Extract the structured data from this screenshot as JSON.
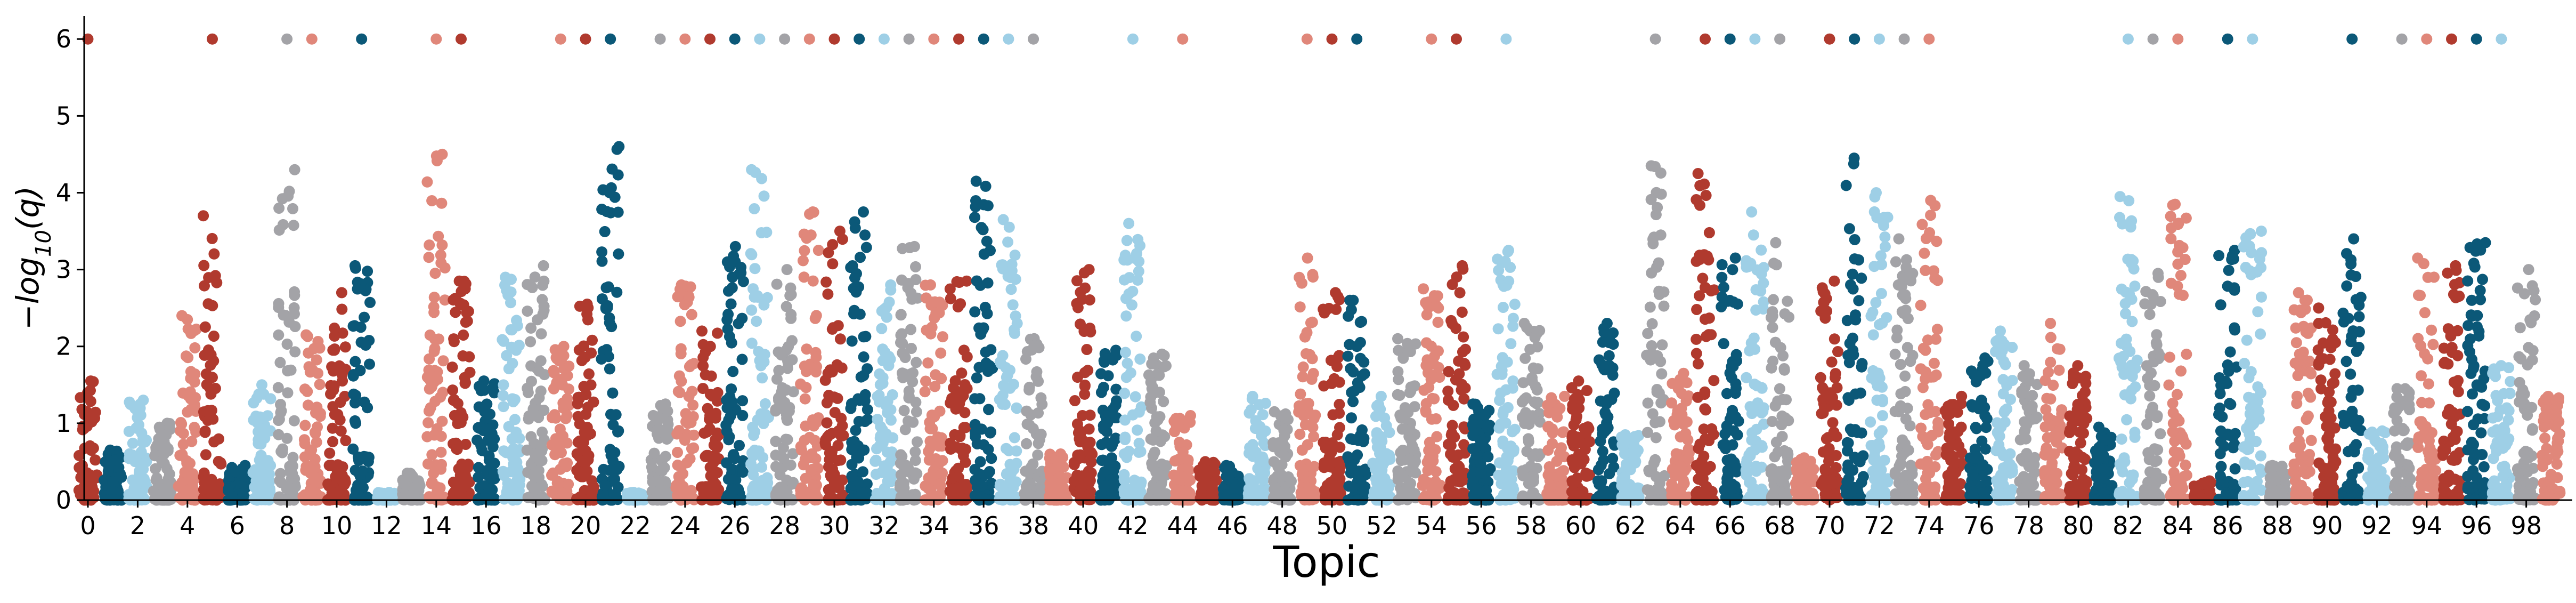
{
  "chart_data": {
    "type": "scatter",
    "title": "",
    "xlabel": "Topic",
    "ylabel": "−log10(q)",
    "ylabel_main": "−log",
    "ylabel_sub": "10",
    "ylabel_tail": "(q)",
    "xlim": [
      -0.15,
      99.85
    ],
    "ylim": [
      0,
      6.3
    ],
    "yticks": [
      0,
      1,
      2,
      3,
      4,
      5,
      6
    ],
    "xticks": [
      0,
      2,
      4,
      6,
      8,
      10,
      12,
      14,
      16,
      18,
      20,
      22,
      24,
      26,
      28,
      30,
      32,
      34,
      36,
      38,
      40,
      42,
      44,
      46,
      48,
      50,
      52,
      54,
      56,
      58,
      60,
      62,
      64,
      66,
      68,
      70,
      72,
      74,
      76,
      78,
      80,
      82,
      84,
      86,
      88,
      90,
      92,
      94,
      96,
      98
    ],
    "grid": false,
    "legend": "none",
    "color_cycle": [
      "#b03a2e",
      "#0b5878",
      "#9ecfe6",
      "#a3a3a7",
      "#e0877a"
    ],
    "marker_size_note": "values capped at 6",
    "topics": [
      {
        "topic": 0,
        "max": 1.55,
        "capped": true
      },
      {
        "topic": 1,
        "max": 0.65,
        "capped": false
      },
      {
        "topic": 2,
        "max": 1.3,
        "capped": false
      },
      {
        "topic": 3,
        "max": 1.0,
        "capped": false
      },
      {
        "topic": 4,
        "max": 2.4,
        "capped": false
      },
      {
        "topic": 5,
        "max": 3.7,
        "capped": true
      },
      {
        "topic": 6,
        "max": 0.45,
        "capped": false
      },
      {
        "topic": 7,
        "max": 1.5,
        "capped": false
      },
      {
        "topic": 8,
        "max": 4.3,
        "capped": true
      },
      {
        "topic": 9,
        "max": 2.15,
        "capped": true
      },
      {
        "topic": 10,
        "max": 2.7,
        "capped": false
      },
      {
        "topic": 11,
        "max": 3.05,
        "capped": true
      },
      {
        "topic": 12,
        "max": 0.1,
        "capped": false
      },
      {
        "topic": 13,
        "max": 0.35,
        "capped": false
      },
      {
        "topic": 14,
        "max": 4.5,
        "capped": true
      },
      {
        "topic": 15,
        "max": 2.85,
        "capped": true
      },
      {
        "topic": 16,
        "max": 1.55,
        "capped": false
      },
      {
        "topic": 17,
        "max": 2.9,
        "capped": false
      },
      {
        "topic": 18,
        "max": 3.05,
        "capped": false
      },
      {
        "topic": 19,
        "max": 2.0,
        "capped": true
      },
      {
        "topic": 20,
        "max": 2.55,
        "capped": true
      },
      {
        "topic": 21,
        "max": 4.6,
        "capped": true
      },
      {
        "topic": 22,
        "max": 0.1,
        "capped": false
      },
      {
        "topic": 23,
        "max": 1.25,
        "capped": true
      },
      {
        "topic": 24,
        "max": 2.8,
        "capped": true
      },
      {
        "topic": 25,
        "max": 2.2,
        "capped": true
      },
      {
        "topic": 26,
        "max": 3.3,
        "capped": true
      },
      {
        "topic": 27,
        "max": 4.3,
        "capped": true
      },
      {
        "topic": 28,
        "max": 3.0,
        "capped": true
      },
      {
        "topic": 29,
        "max": 3.75,
        "capped": true
      },
      {
        "topic": 30,
        "max": 3.5,
        "capped": true
      },
      {
        "topic": 31,
        "max": 3.75,
        "capped": true
      },
      {
        "topic": 32,
        "max": 2.8,
        "capped": true
      },
      {
        "topic": 33,
        "max": 3.3,
        "capped": true
      },
      {
        "topic": 34,
        "max": 2.8,
        "capped": true
      },
      {
        "topic": 35,
        "max": 2.85,
        "capped": true
      },
      {
        "topic": 36,
        "max": 4.15,
        "capped": true
      },
      {
        "topic": 37,
        "max": 3.65,
        "capped": true
      },
      {
        "topic": 38,
        "max": 2.1,
        "capped": true
      },
      {
        "topic": 39,
        "max": 0.6,
        "capped": false
      },
      {
        "topic": 40,
        "max": 3.0,
        "capped": false
      },
      {
        "topic": 41,
        "max": 1.95,
        "capped": false
      },
      {
        "topic": 42,
        "max": 3.6,
        "capped": true
      },
      {
        "topic": 43,
        "max": 1.9,
        "capped": false
      },
      {
        "topic": 44,
        "max": 1.1,
        "capped": true
      },
      {
        "topic": 45,
        "max": 0.5,
        "capped": false
      },
      {
        "topic": 46,
        "max": 0.45,
        "capped": false
      },
      {
        "topic": 47,
        "max": 1.35,
        "capped": false
      },
      {
        "topic": 48,
        "max": 1.15,
        "capped": false
      },
      {
        "topic": 49,
        "max": 3.15,
        "capped": true
      },
      {
        "topic": 50,
        "max": 2.7,
        "capped": true
      },
      {
        "topic": 51,
        "max": 2.6,
        "capped": true
      },
      {
        "topic": 52,
        "max": 1.35,
        "capped": false
      },
      {
        "topic": 53,
        "max": 2.1,
        "capped": false
      },
      {
        "topic": 54,
        "max": 2.75,
        "capped": true
      },
      {
        "topic": 55,
        "max": 3.05,
        "capped": true
      },
      {
        "topic": 56,
        "max": 1.25,
        "capped": false
      },
      {
        "topic": 57,
        "max": 3.25,
        "capped": true
      },
      {
        "topic": 58,
        "max": 2.3,
        "capped": false
      },
      {
        "topic": 59,
        "max": 1.35,
        "capped": false
      },
      {
        "topic": 60,
        "max": 1.55,
        "capped": false
      },
      {
        "topic": 61,
        "max": 2.3,
        "capped": false
      },
      {
        "topic": 62,
        "max": 0.85,
        "capped": false
      },
      {
        "topic": 63,
        "max": 4.35,
        "capped": true
      },
      {
        "topic": 64,
        "max": 1.65,
        "capped": false
      },
      {
        "topic": 65,
        "max": 4.25,
        "capped": true
      },
      {
        "topic": 66,
        "max": 3.15,
        "capped": true
      },
      {
        "topic": 67,
        "max": 3.75,
        "capped": true
      },
      {
        "topic": 68,
        "max": 3.35,
        "capped": true
      },
      {
        "topic": 69,
        "max": 0.55,
        "capped": false
      },
      {
        "topic": 70,
        "max": 2.85,
        "capped": true
      },
      {
        "topic": 71,
        "max": 4.45,
        "capped": true
      },
      {
        "topic": 72,
        "max": 4.0,
        "capped": true
      },
      {
        "topic": 73,
        "max": 3.4,
        "capped": true
      },
      {
        "topic": 74,
        "max": 3.9,
        "capped": true
      },
      {
        "topic": 75,
        "max": 1.35,
        "capped": false
      },
      {
        "topic": 76,
        "max": 1.85,
        "capped": false
      },
      {
        "topic": 77,
        "max": 2.2,
        "capped": false
      },
      {
        "topic": 78,
        "max": 1.75,
        "capped": false
      },
      {
        "topic": 79,
        "max": 2.3,
        "capped": false
      },
      {
        "topic": 80,
        "max": 1.75,
        "capped": false
      },
      {
        "topic": 81,
        "max": 0.95,
        "capped": false
      },
      {
        "topic": 82,
        "max": 3.95,
        "capped": true
      },
      {
        "topic": 83,
        "max": 2.95,
        "capped": true
      },
      {
        "topic": 84,
        "max": 3.85,
        "capped": true
      },
      {
        "topic": 85,
        "max": 0.25,
        "capped": false
      },
      {
        "topic": 86,
        "max": 3.25,
        "capped": true
      },
      {
        "topic": 87,
        "max": 3.5,
        "capped": true
      },
      {
        "topic": 88,
        "max": 0.45,
        "capped": false
      },
      {
        "topic": 89,
        "max": 2.7,
        "capped": false
      },
      {
        "topic": 90,
        "max": 2.5,
        "capped": false
      },
      {
        "topic": 91,
        "max": 3.4,
        "capped": true
      },
      {
        "topic": 92,
        "max": 0.9,
        "capped": false
      },
      {
        "topic": 93,
        "max": 1.45,
        "capped": true
      },
      {
        "topic": 94,
        "max": 3.15,
        "capped": true
      },
      {
        "topic": 95,
        "max": 3.05,
        "capped": true
      },
      {
        "topic": 96,
        "max": 3.35,
        "capped": true
      },
      {
        "topic": 97,
        "max": 1.75,
        "capped": true
      },
      {
        "topic": 98,
        "max": 3.0,
        "capped": false
      },
      {
        "topic": 99,
        "max": 1.35,
        "capped": false
      }
    ]
  }
}
